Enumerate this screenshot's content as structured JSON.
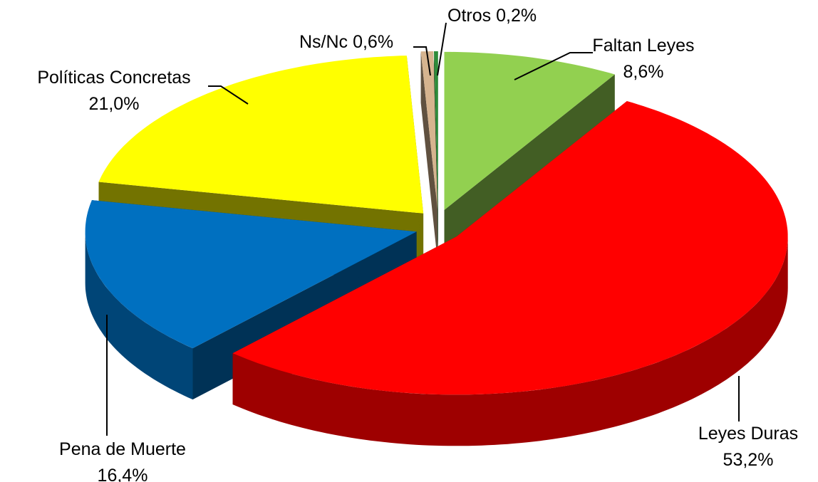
{
  "chart_data": {
    "type": "pie",
    "categories": [
      "Faltan Leyes",
      "Leyes Duras",
      "Pena de Muerte",
      "Políticas Concretas",
      "Ns/Nc",
      "Otros"
    ],
    "values": [
      8.6,
      53.2,
      16.4,
      21.0,
      0.6,
      0.2
    ],
    "value_labels": [
      "8,6%",
      "53,2%",
      "16,4%",
      "21,0%",
      "0,6%",
      "0,2%"
    ],
    "colors": [
      "#92d050",
      "#ff0000",
      "#0070c0",
      "#ffff00",
      "#d6b48f",
      "#2e8b3a"
    ]
  }
}
